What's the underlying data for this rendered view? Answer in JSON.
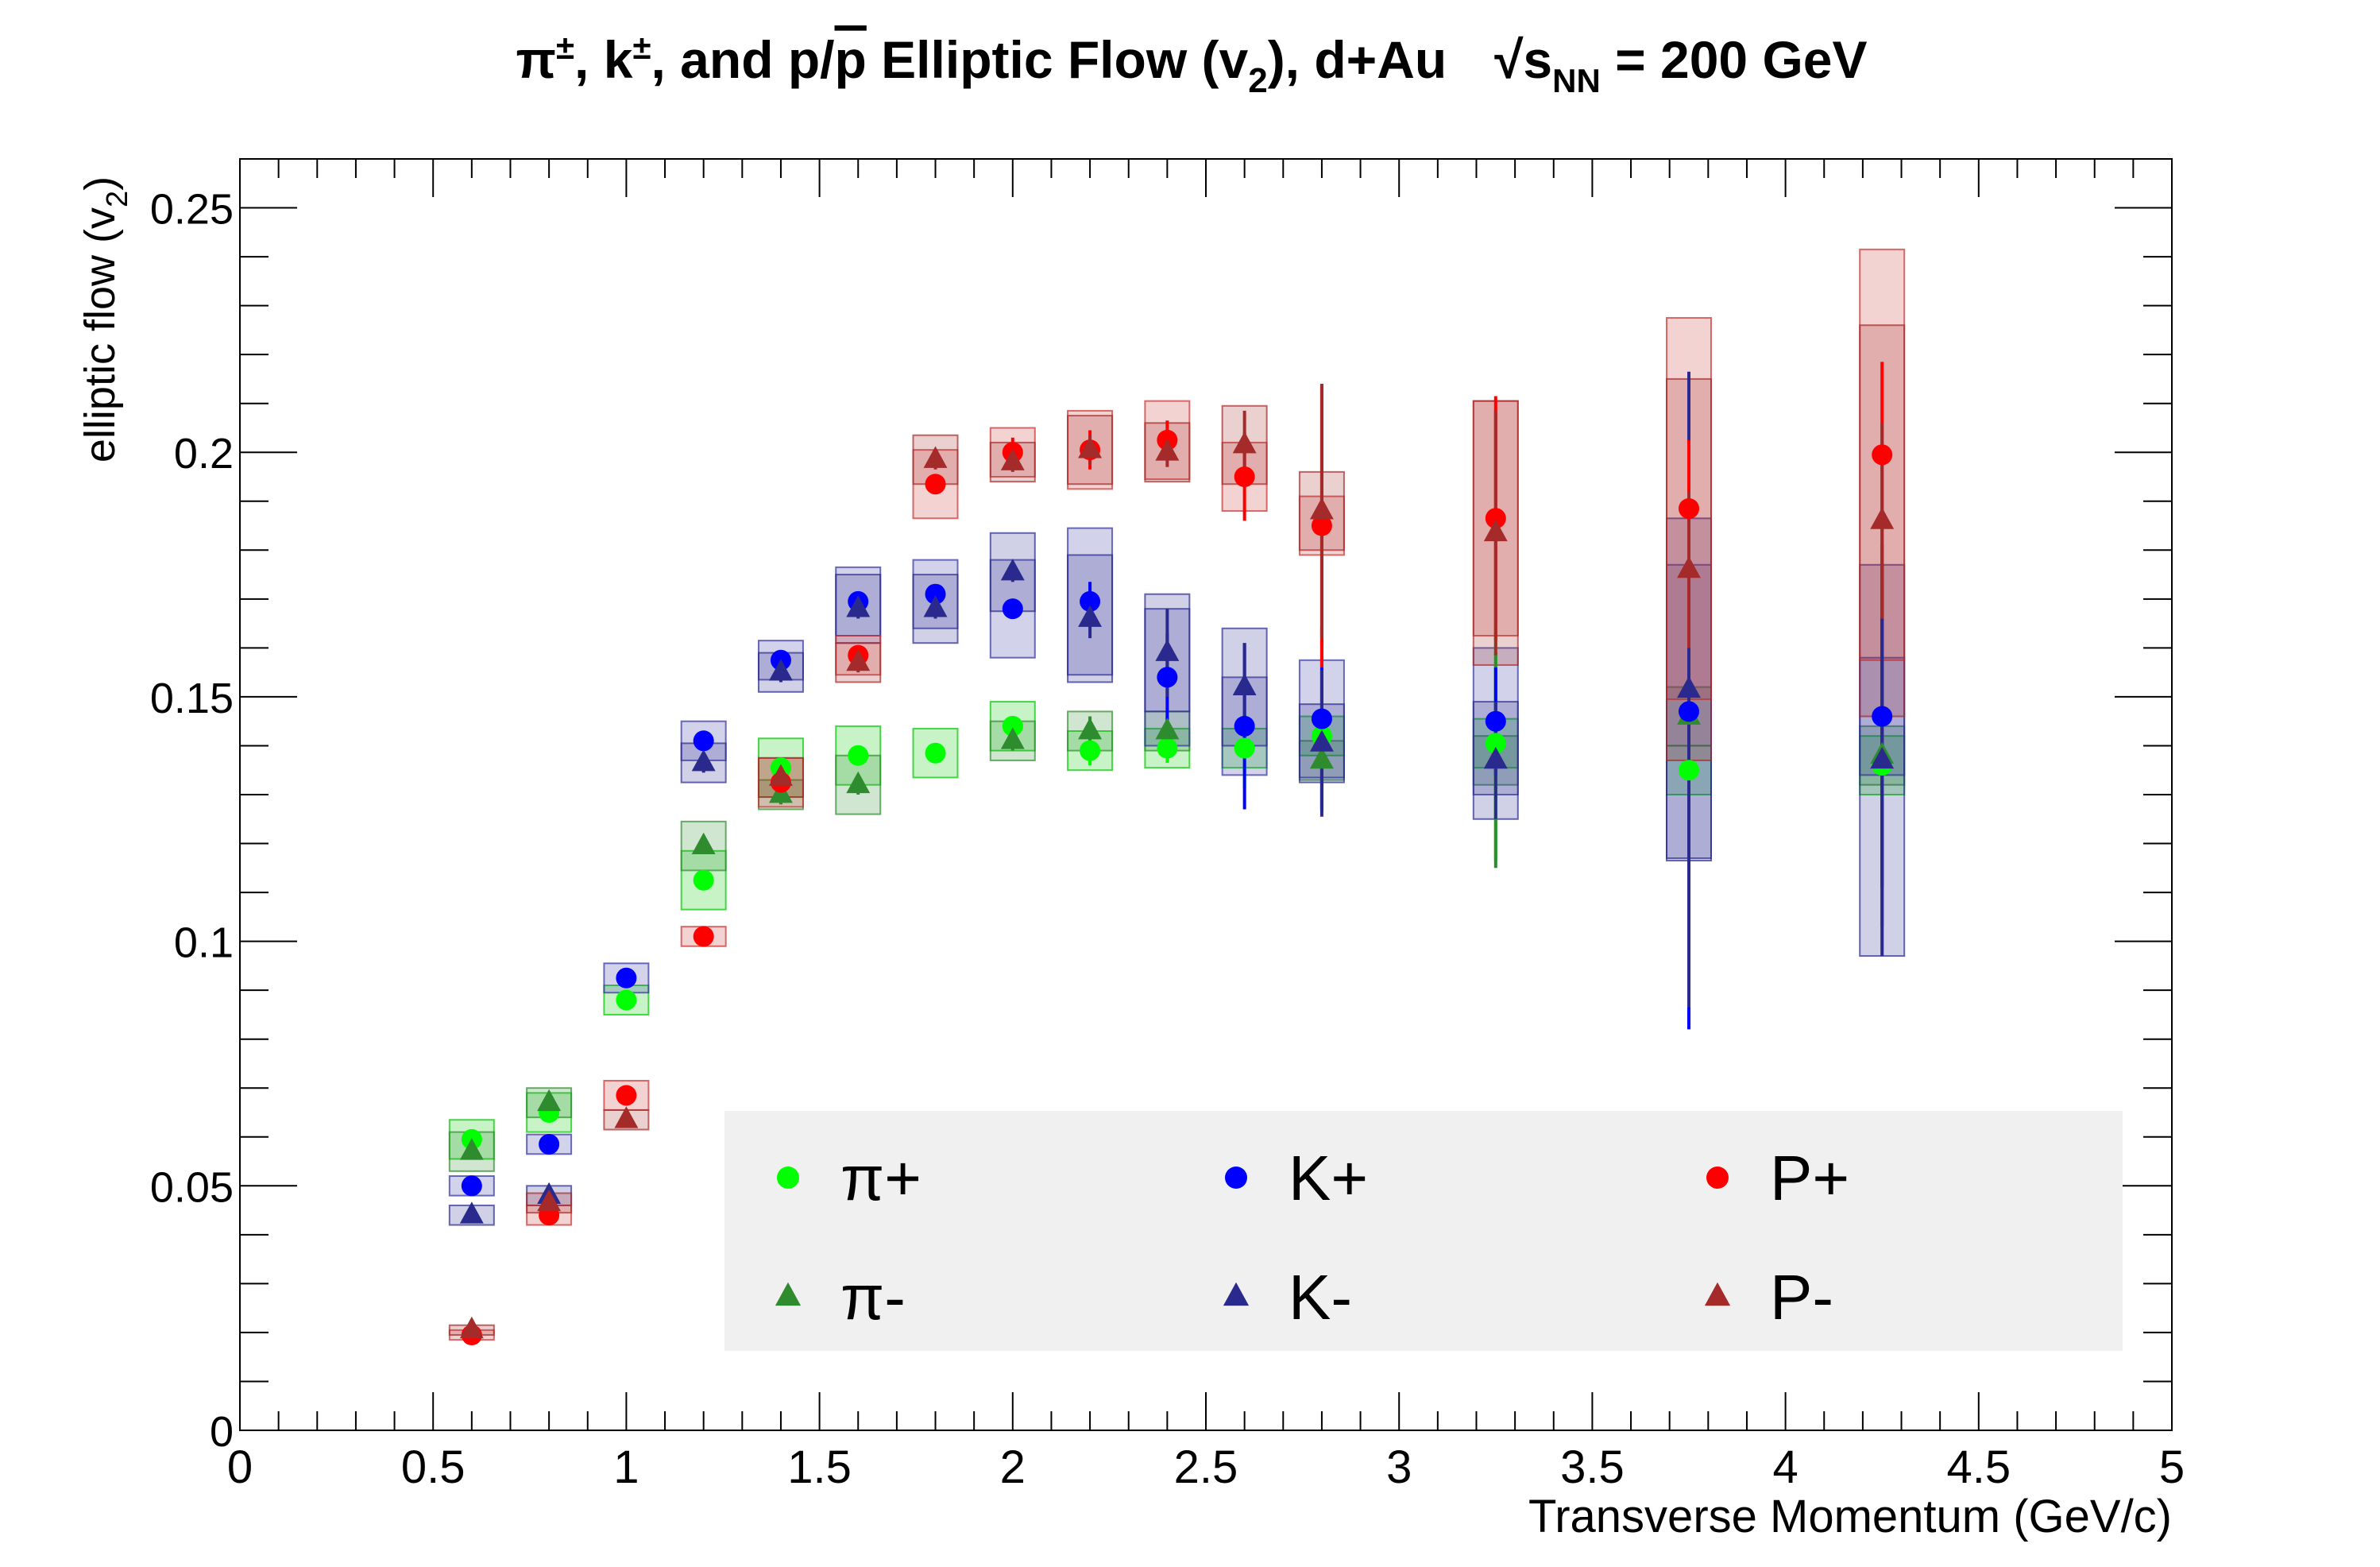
{
  "chart_data": {
    "type": "scatter",
    "title": {
      "particles": "π±, k±, and p/p̄",
      "main": "Elliptic Flow (v2), d+Au",
      "energy": "√sNN = 200 GeV",
      "parts": [
        "π",
        "±",
        ", k",
        "±",
        ", and p/",
        "p",
        " Elliptic Flow (v",
        "2",
        "), d+Au",
        "√s",
        "NN",
        " = 200 GeV"
      ]
    },
    "xlabel": "Transverse Momentum (GeV/c)",
    "ylabel": "elliptic flow (v2)",
    "ylabel_parts": [
      "elliptic flow (v",
      "2",
      ")"
    ],
    "xlim": [
      0,
      5
    ],
    "ylim": [
      0,
      0.26
    ],
    "x_ticks": [
      "0",
      "0.5",
      "1",
      "1.5",
      "2",
      "2.5",
      "3",
      "3.5",
      "4",
      "4.5",
      "5"
    ],
    "y_ticks": [
      "0",
      "0.05",
      "0.1",
      "0.15",
      "0.2",
      "0.25"
    ],
    "grid": false,
    "legend_position": "bottom-right",
    "series": [
      {
        "name": "π+",
        "marker": "circle",
        "color": "#00ff00",
        "box_color": "#00c800",
        "points": [
          {
            "x": 0.6,
            "y": 0.0595,
            "err": 0.001,
            "syst": 0.004
          },
          {
            "x": 0.8,
            "y": 0.065,
            "err": 0.001,
            "syst": 0.004
          },
          {
            "x": 1.0,
            "y": 0.088,
            "err": 0.001,
            "syst": 0.003
          },
          {
            "x": 1.2,
            "y": 0.1125,
            "err": 0.001,
            "syst": 0.006
          },
          {
            "x": 1.4,
            "y": 0.1355,
            "err": 0.002,
            "syst": 0.006
          },
          {
            "x": 1.6,
            "y": 0.138,
            "err": 0.002,
            "syst": 0.006
          },
          {
            "x": 1.8,
            "y": 0.1385,
            "err": 0.002,
            "syst": 0.005
          },
          {
            "x": 2.0,
            "y": 0.144,
            "err": 0.002,
            "syst": 0.005
          },
          {
            "x": 2.2,
            "y": 0.139,
            "err": 0.003,
            "syst": 0.004
          },
          {
            "x": 2.4,
            "y": 0.1395,
            "err": 0.003,
            "syst": 0.004
          },
          {
            "x": 2.6,
            "y": 0.1395,
            "err": 0.008,
            "syst": 0.004
          },
          {
            "x": 2.8,
            "y": 0.142,
            "err": 0.01,
            "syst": 0.004
          },
          {
            "x": 3.25,
            "y": 0.1405,
            "err": 0.024,
            "syst": 0.005
          },
          {
            "x": 3.75,
            "y": 0.135,
            "err": 0.022,
            "syst": 0.005
          },
          {
            "x": 4.25,
            "y": 0.136,
            "err": 0.038,
            "syst": 0.006
          }
        ]
      },
      {
        "name": "π-",
        "marker": "triangle",
        "color": "#2e8b2e",
        "box_color": "#2e8b2e",
        "points": [
          {
            "x": 0.6,
            "y": 0.057,
            "err": 0.001,
            "syst": 0.004
          },
          {
            "x": 0.8,
            "y": 0.067,
            "err": 0.001,
            "syst": 0.003
          },
          {
            "x": 1.2,
            "y": 0.1195,
            "err": 0.001,
            "syst": 0.005
          },
          {
            "x": 1.4,
            "y": 0.13,
            "err": 0.002,
            "syst": 0.003
          },
          {
            "x": 1.6,
            "y": 0.132,
            "err": 0.002,
            "syst": 0.006
          },
          {
            "x": 2.0,
            "y": 0.141,
            "err": 0.002,
            "syst": 0.004
          },
          {
            "x": 2.2,
            "y": 0.143,
            "err": 0.003,
            "syst": 0.004
          },
          {
            "x": 2.4,
            "y": 0.143,
            "err": 0.003,
            "syst": 0.004
          },
          {
            "x": 2.8,
            "y": 0.137,
            "err": 0.01,
            "syst": 0.004
          },
          {
            "x": 3.25,
            "y": 0.137,
            "err": 0.022,
            "syst": 0.005
          },
          {
            "x": 3.75,
            "y": 0.146,
            "err": 0.03,
            "syst": 0.006
          },
          {
            "x": 4.25,
            "y": 0.138,
            "err": 0.035,
            "syst": 0.006
          }
        ]
      },
      {
        "name": "K+",
        "marker": "circle",
        "color": "#0000ff",
        "box_color": "#3030a0",
        "points": [
          {
            "x": 0.6,
            "y": 0.05,
            "err": 0.001,
            "syst": 0.002
          },
          {
            "x": 0.8,
            "y": 0.0585,
            "err": 0.001,
            "syst": 0.002
          },
          {
            "x": 1.0,
            "y": 0.0925,
            "err": 0.001,
            "syst": 0.003
          },
          {
            "x": 1.2,
            "y": 0.141,
            "err": 0.002,
            "syst": 0.004
          },
          {
            "x": 1.4,
            "y": 0.1575,
            "err": 0.002,
            "syst": 0.004
          },
          {
            "x": 1.6,
            "y": 0.1695,
            "err": 0.002,
            "syst": 0.007
          },
          {
            "x": 1.8,
            "y": 0.171,
            "err": 0.002,
            "syst": 0.007
          },
          {
            "x": 2.0,
            "y": 0.168,
            "err": 0.002,
            "syst": 0.01
          },
          {
            "x": 2.2,
            "y": 0.1695,
            "err": 0.004,
            "syst": 0.015
          },
          {
            "x": 2.4,
            "y": 0.154,
            "err": 0.009,
            "syst": 0.014
          },
          {
            "x": 2.6,
            "y": 0.144,
            "err": 0.017,
            "syst": 0.01
          },
          {
            "x": 2.8,
            "y": 0.1455,
            "err": 0.019,
            "syst": 0.012
          },
          {
            "x": 3.25,
            "y": 0.145,
            "err": 0.011,
            "syst": 0.015
          },
          {
            "x": 3.75,
            "y": 0.147,
            "err": 0.065,
            "syst": 0.03
          },
          {
            "x": 4.25,
            "y": 0.146,
            "err": 0.035,
            "syst": 0.012
          }
        ]
      },
      {
        "name": "K-",
        "marker": "triangle",
        "color": "#2a2a8e",
        "box_color": "#2a2a8e",
        "points": [
          {
            "x": 0.6,
            "y": 0.044,
            "err": 0.001,
            "syst": 0.002
          },
          {
            "x": 0.8,
            "y": 0.048,
            "err": 0.001,
            "syst": 0.002
          },
          {
            "x": 1.2,
            "y": 0.1365,
            "err": 0.002,
            "syst": 0.004
          },
          {
            "x": 1.4,
            "y": 0.155,
            "err": 0.002,
            "syst": 0.004
          },
          {
            "x": 1.6,
            "y": 0.168,
            "err": 0.002,
            "syst": 0.007
          },
          {
            "x": 1.8,
            "y": 0.168,
            "err": 0.002,
            "syst": 0.007
          },
          {
            "x": 2.0,
            "y": 0.1755,
            "err": 0.002,
            "syst": 0.008
          },
          {
            "x": 2.2,
            "y": 0.166,
            "err": 0.004,
            "syst": 0.013
          },
          {
            "x": 2.4,
            "y": 0.159,
            "err": 0.009,
            "syst": 0.012
          },
          {
            "x": 2.6,
            "y": 0.152,
            "err": 0.009,
            "syst": 0.012
          },
          {
            "x": 2.8,
            "y": 0.1405,
            "err": 0.015,
            "syst": 0.008
          },
          {
            "x": 3.25,
            "y": 0.137,
            "err": 0.012,
            "syst": 0.012
          },
          {
            "x": 3.75,
            "y": 0.1515,
            "err": 0.065,
            "syst": 0.035
          },
          {
            "x": 4.25,
            "y": 0.137,
            "err": 0.04,
            "syst": 0.04
          }
        ]
      },
      {
        "name": "P+",
        "marker": "circle",
        "color": "#ff0000",
        "box_color": "#c83030",
        "points": [
          {
            "x": 0.6,
            "y": 0.0195,
            "err": 0.001,
            "syst": 0.001
          },
          {
            "x": 0.8,
            "y": 0.044,
            "err": 0.001,
            "syst": 0.002
          },
          {
            "x": 1.0,
            "y": 0.0685,
            "err": 0.001,
            "syst": 0.003
          },
          {
            "x": 1.2,
            "y": 0.101,
            "err": 0.001,
            "syst": 0.002
          },
          {
            "x": 1.4,
            "y": 0.1325,
            "err": 0.001,
            "syst": 0.005
          },
          {
            "x": 1.6,
            "y": 0.1585,
            "err": 0.002,
            "syst": 0.004
          },
          {
            "x": 1.8,
            "y": 0.1935,
            "err": 0.002,
            "syst": 0.007
          },
          {
            "x": 2.0,
            "y": 0.2,
            "err": 0.003,
            "syst": 0.005
          },
          {
            "x": 2.2,
            "y": 0.2005,
            "err": 0.004,
            "syst": 0.008
          },
          {
            "x": 2.4,
            "y": 0.2025,
            "err": 0.004,
            "syst": 0.008
          },
          {
            "x": 2.6,
            "y": 0.195,
            "err": 0.009,
            "syst": 0.007
          },
          {
            "x": 2.8,
            "y": 0.185,
            "err": 0.029,
            "syst": 0.006
          },
          {
            "x": 3.25,
            "y": 0.1865,
            "err": 0.025,
            "syst": 0.024
          },
          {
            "x": 3.75,
            "y": 0.1885,
            "err": 0.014,
            "syst": 0.039
          },
          {
            "x": 4.25,
            "y": 0.1995,
            "err": 0.019,
            "syst": 0.042
          }
        ]
      },
      {
        "name": "P-",
        "marker": "triangle",
        "color": "#a52a2a",
        "box_color": "#a52a2a",
        "points": [
          {
            "x": 0.6,
            "y": 0.0205,
            "err": 0.001,
            "syst": 0.001
          },
          {
            "x": 0.8,
            "y": 0.0465,
            "err": 0.001,
            "syst": 0.002
          },
          {
            "x": 1.0,
            "y": 0.0635,
            "err": 0.001,
            "syst": 0.002
          },
          {
            "x": 1.4,
            "y": 0.1335,
            "err": 0.001,
            "syst": 0.004
          },
          {
            "x": 1.6,
            "y": 0.157,
            "err": 0.002,
            "syst": 0.004
          },
          {
            "x": 1.8,
            "y": 0.1985,
            "err": 0.002,
            "syst": 0.005
          },
          {
            "x": 2.0,
            "y": 0.198,
            "err": 0.002,
            "syst": 0.004
          },
          {
            "x": 2.2,
            "y": 0.2005,
            "err": 0.003,
            "syst": 0.007
          },
          {
            "x": 2.4,
            "y": 0.2,
            "err": 0.003,
            "syst": 0.006
          },
          {
            "x": 2.6,
            "y": 0.2015,
            "err": 0.007,
            "syst": 0.008
          },
          {
            "x": 2.8,
            "y": 0.188,
            "err": 0.026,
            "syst": 0.008
          },
          {
            "x": 3.25,
            "y": 0.1835,
            "err": 0.025,
            "syst": 0.027
          },
          {
            "x": 3.75,
            "y": 0.176,
            "err": 0.016,
            "syst": 0.039
          },
          {
            "x": 4.25,
            "y": 0.186,
            "err": 0.02,
            "syst": 0.04
          }
        ]
      }
    ]
  }
}
